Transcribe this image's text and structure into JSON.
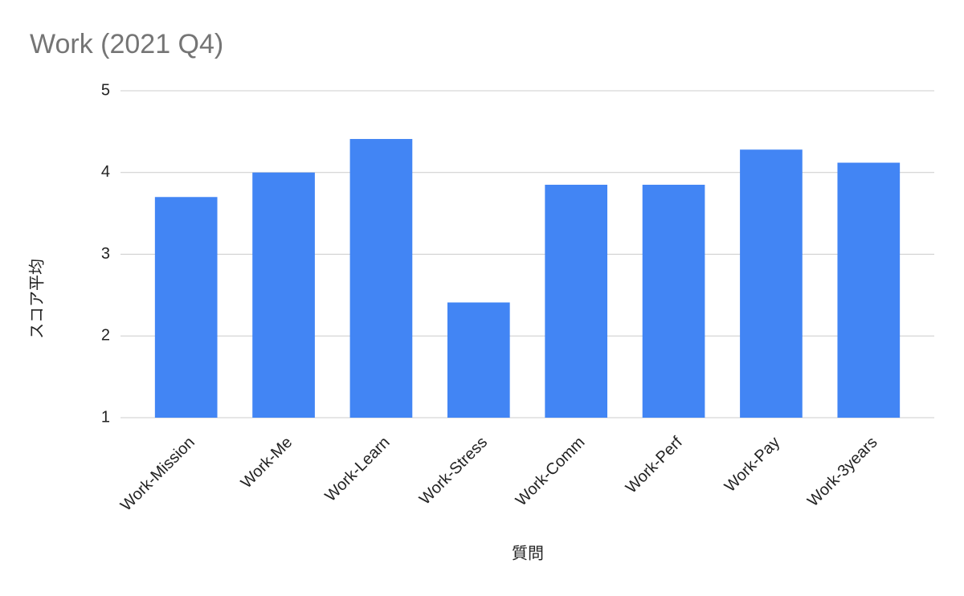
{
  "chart_data": {
    "type": "bar",
    "title": "Work (2021 Q4)",
    "x_label": "質問",
    "y_label": "スコア平均",
    "categories": [
      "Work-Mission",
      "Work-Me",
      "Work-Learn",
      "Work-Stress",
      "Work-Comm",
      "Work-Perf",
      "Work-Pay",
      "Work-3years"
    ],
    "values": [
      3.7,
      4.0,
      4.41,
      2.41,
      3.85,
      3.85,
      4.28,
      4.12
    ],
    "color": "#4285f4",
    "ylim": [
      1,
      5
    ],
    "yticks": [
      1,
      2,
      3,
      4,
      5
    ],
    "grid": true
  }
}
